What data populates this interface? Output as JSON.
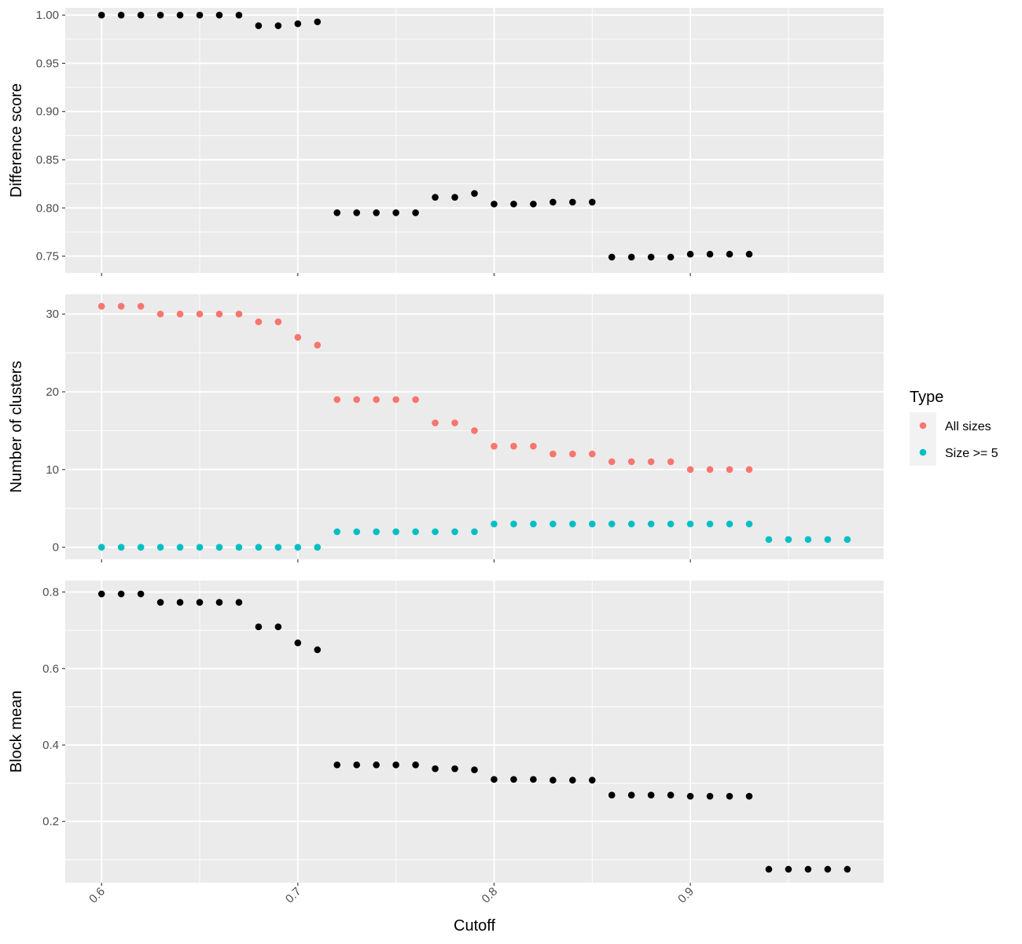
{
  "chart_data": {
    "type": "scatter",
    "layout": "three vertically stacked facet panels sharing the x axis",
    "background": "#EBEBEB",
    "grid": true,
    "xlabel": "Cutoff",
    "xlim": [
      0.5815,
      0.9985
    ],
    "xticks": [
      0.6,
      0.7,
      0.8,
      0.9
    ],
    "xtick_labels": [
      "0.6",
      "0.7",
      "0.8",
      "0.9"
    ],
    "xtick_rotation": "45 degrees",
    "legend": {
      "title": "Type",
      "position": "right",
      "entries": [
        {
          "label": "All sizes",
          "color": "#F8766D"
        },
        {
          "label": "Size >= 5",
          "color": "#00BFC4"
        }
      ]
    },
    "panels": [
      {
        "ylabel": "Difference score",
        "ylim": [
          0.7325,
          1.0075
        ],
        "yticks": [
          0.75,
          0.8,
          0.85,
          0.9,
          0.95,
          1.0
        ],
        "ytick_labels": [
          "0.75",
          "0.80",
          "0.85",
          "0.90",
          "0.95",
          "1.00"
        ],
        "series": [
          {
            "color": "#000000",
            "x": [
              0.6,
              0.61,
              0.62,
              0.63,
              0.64,
              0.65,
              0.66,
              0.67,
              0.68,
              0.69,
              0.7,
              0.71,
              0.72,
              0.73,
              0.74,
              0.75,
              0.76,
              0.77,
              0.78,
              0.79,
              0.8,
              0.81,
              0.82,
              0.83,
              0.84,
              0.85,
              0.86,
              0.87,
              0.88,
              0.89,
              0.9,
              0.91,
              0.92,
              0.93
            ],
            "y": [
              1.0,
              1.0,
              1.0,
              1.0,
              1.0,
              1.0,
              1.0,
              1.0,
              0.989,
              0.989,
              0.991,
              0.993,
              0.795,
              0.795,
              0.795,
              0.795,
              0.795,
              0.811,
              0.811,
              0.815,
              0.804,
              0.804,
              0.804,
              0.806,
              0.806,
              0.806,
              0.749,
              0.749,
              0.749,
              0.749,
              0.752,
              0.752,
              0.752,
              0.752
            ]
          }
        ]
      },
      {
        "ylabel": "Number of clusters",
        "ylim": [
          -1.55,
          32.55
        ],
        "yticks": [
          0,
          10,
          20,
          30
        ],
        "ytick_labels": [
          "0",
          "10",
          "20",
          "30"
        ],
        "series": [
          {
            "name": "All sizes",
            "color": "#F8766D",
            "x": [
              0.6,
              0.61,
              0.62,
              0.63,
              0.64,
              0.65,
              0.66,
              0.67,
              0.68,
              0.69,
              0.7,
              0.71,
              0.72,
              0.73,
              0.74,
              0.75,
              0.76,
              0.77,
              0.78,
              0.79,
              0.8,
              0.81,
              0.82,
              0.83,
              0.84,
              0.85,
              0.86,
              0.87,
              0.88,
              0.89,
              0.9,
              0.91,
              0.92,
              0.93
            ],
            "y": [
              31,
              31,
              31,
              30,
              30,
              30,
              30,
              30,
              29,
              29,
              27,
              26,
              19,
              19,
              19,
              19,
              19,
              16,
              16,
              15,
              13,
              13,
              13,
              12,
              12,
              12,
              11,
              11,
              11,
              11,
              10,
              10,
              10,
              10
            ]
          },
          {
            "name": "Size >= 5",
            "color": "#00BFC4",
            "x": [
              0.6,
              0.61,
              0.62,
              0.63,
              0.64,
              0.65,
              0.66,
              0.67,
              0.68,
              0.69,
              0.7,
              0.71,
              0.72,
              0.73,
              0.74,
              0.75,
              0.76,
              0.77,
              0.78,
              0.79,
              0.8,
              0.81,
              0.82,
              0.83,
              0.84,
              0.85,
              0.86,
              0.87,
              0.88,
              0.89,
              0.9,
              0.91,
              0.92,
              0.93,
              0.94,
              0.95,
              0.96,
              0.97,
              0.98
            ],
            "y": [
              0,
              0,
              0,
              0,
              0,
              0,
              0,
              0,
              0,
              0,
              0,
              0,
              2,
              2,
              2,
              2,
              2,
              2,
              2,
              2,
              3,
              3,
              3,
              3,
              3,
              3,
              3,
              3,
              3,
              3,
              3,
              3,
              3,
              3,
              1,
              1,
              1,
              1,
              1
            ]
          }
        ]
      },
      {
        "ylabel": "Block mean",
        "ylim": [
          0.04,
          0.83
        ],
        "yticks": [
          0.2,
          0.4,
          0.6,
          0.8
        ],
        "ytick_labels": [
          "0.2",
          "0.4",
          "0.6",
          "0.8"
        ],
        "series": [
          {
            "color": "#000000",
            "x": [
              0.6,
              0.61,
              0.62,
              0.63,
              0.64,
              0.65,
              0.66,
              0.67,
              0.68,
              0.69,
              0.7,
              0.71,
              0.72,
              0.73,
              0.74,
              0.75,
              0.76,
              0.77,
              0.78,
              0.79,
              0.8,
              0.81,
              0.82,
              0.83,
              0.84,
              0.85,
              0.86,
              0.87,
              0.88,
              0.89,
              0.9,
              0.91,
              0.92,
              0.93,
              0.94,
              0.95,
              0.96,
              0.97,
              0.98
            ],
            "y": [
              0.795,
              0.795,
              0.795,
              0.773,
              0.773,
              0.773,
              0.773,
              0.773,
              0.709,
              0.709,
              0.667,
              0.649,
              0.348,
              0.348,
              0.348,
              0.348,
              0.348,
              0.338,
              0.338,
              0.335,
              0.31,
              0.31,
              0.31,
              0.308,
              0.308,
              0.308,
              0.269,
              0.269,
              0.269,
              0.269,
              0.266,
              0.266,
              0.266,
              0.266,
              0.075,
              0.075,
              0.075,
              0.075,
              0.075
            ]
          }
        ]
      }
    ]
  }
}
